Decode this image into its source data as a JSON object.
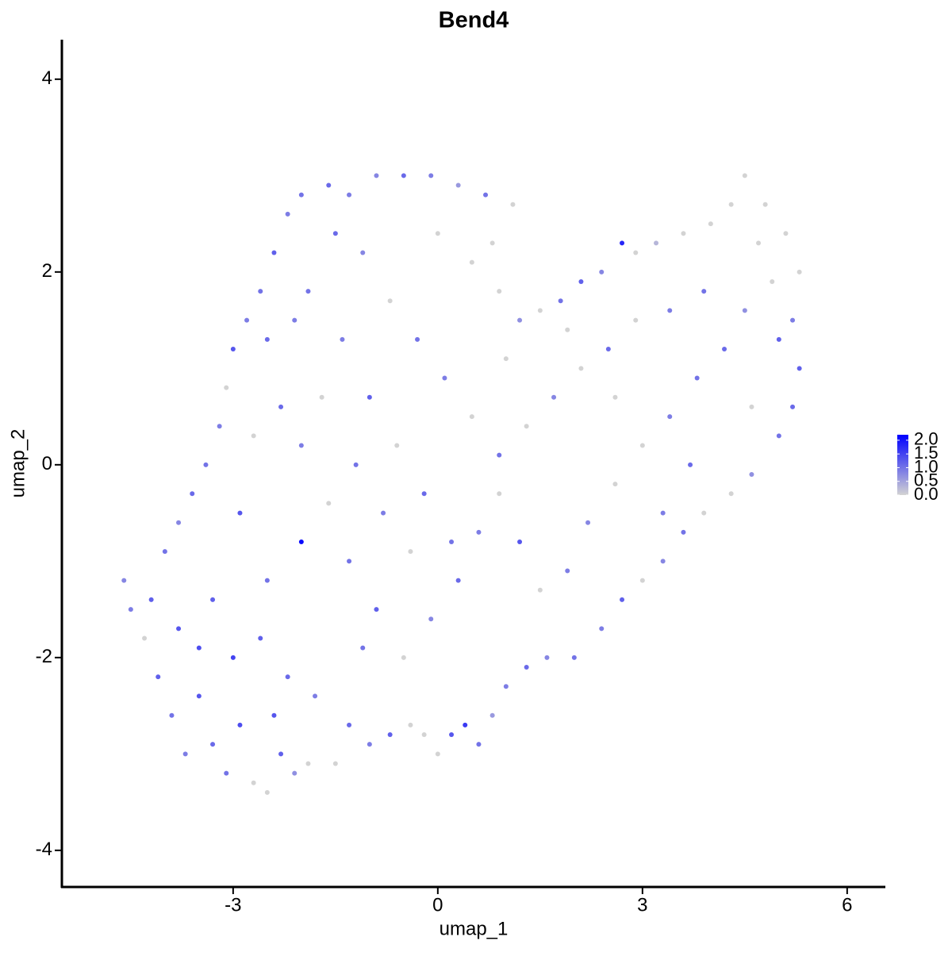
{
  "chart_data": {
    "type": "scatter",
    "title": "Bend4",
    "xlabel": "umap_1",
    "ylabel": "umap_2",
    "xlim": [
      -5.51,
      6.56
    ],
    "ylim": [
      -4.38,
      4.41
    ],
    "xticks": [
      -3,
      0,
      3,
      6
    ],
    "yticks": [
      -4,
      -2,
      0,
      2,
      4
    ],
    "x": [
      -4.6,
      -4.5,
      -4.3,
      -4.1,
      -3.9,
      -3.7,
      -3.5,
      -3.3,
      -3.1,
      -2.9,
      -2.7,
      -2.5,
      -2.3,
      -2.1,
      -1.9,
      -1.5,
      -1.3,
      -1.0,
      -0.7,
      -0.4,
      -0.2,
      0.0,
      0.2,
      0.4,
      0.6,
      0.8,
      1.0,
      1.3,
      1.6,
      2.0,
      2.4,
      2.7,
      3.0,
      3.3,
      3.6,
      3.9,
      4.3,
      4.6,
      5.0,
      5.2,
      5.3,
      5.2,
      5.3,
      5.1,
      4.8,
      4.5,
      4.3,
      4.0,
      3.6,
      3.2,
      2.9,
      2.7,
      2.4,
      2.1,
      1.8,
      1.5,
      1.2,
      0.9,
      0.8,
      1.1,
      0.7,
      0.3,
      -0.1,
      -0.5,
      -0.9,
      -1.3,
      -1.6,
      -2.0,
      -2.2,
      -2.4,
      -2.6,
      -2.8,
      -3.0,
      -3.1,
      -3.2,
      -3.4,
      -3.6,
      -3.8,
      -4.0,
      -4.2,
      -3.8,
      -3.5,
      -3.0,
      -2.6,
      -2.2,
      -1.8,
      -2.0,
      -2.5,
      -2.9,
      -2.7,
      -2.3,
      -2.0,
      -1.6,
      -1.3,
      -0.9,
      -0.5,
      -0.1,
      0.3,
      0.6,
      0.9,
      1.2,
      1.5,
      1.9,
      2.2,
      2.6,
      3.0,
      3.4,
      3.8,
      4.2,
      4.5,
      4.9,
      4.7,
      3.9,
      3.4,
      2.9,
      2.5,
      2.1,
      1.7,
      1.3,
      0.9,
      0.5,
      0.1,
      -0.3,
      -0.7,
      -1.1,
      -1.5,
      -1.9,
      -1.4,
      -1.0,
      -0.6,
      -0.2,
      0.2,
      -0.4,
      -0.8,
      -1.2,
      -1.7,
      -2.5,
      -2.1,
      0.0,
      0.5,
      1.0,
      1.9,
      2.6,
      3.3,
      3.7,
      4.6,
      5.0,
      -3.3,
      -2.4,
      -1.1
    ],
    "y": [
      -1.2,
      -1.5,
      -1.8,
      -2.2,
      -2.6,
      -3.0,
      -2.4,
      -2.9,
      -3.2,
      -2.7,
      -3.3,
      -3.4,
      -3.0,
      -3.2,
      -3.1,
      -3.1,
      -2.7,
      -2.9,
      -2.8,
      -2.7,
      -2.8,
      -3.0,
      -2.8,
      -2.7,
      -2.9,
      -2.6,
      -2.3,
      -2.1,
      -2.0,
      -2.0,
      -1.7,
      -1.4,
      -1.2,
      -1.0,
      -0.7,
      -0.5,
      -0.3,
      -0.1,
      0.3,
      0.6,
      1.0,
      1.5,
      2.0,
      2.4,
      2.7,
      3.0,
      2.7,
      2.5,
      2.4,
      2.3,
      2.2,
      2.3,
      2.0,
      1.9,
      1.7,
      1.6,
      1.5,
      1.8,
      2.3,
      2.7,
      2.8,
      2.9,
      3.0,
      3.0,
      3.0,
      2.8,
      2.9,
      2.8,
      2.6,
      2.2,
      1.8,
      1.5,
      1.2,
      0.8,
      0.4,
      0.0,
      -0.3,
      -0.6,
      -0.9,
      -1.4,
      -1.7,
      -1.9,
      -2.0,
      -1.8,
      -2.2,
      -2.4,
      -0.8,
      -1.2,
      -0.5,
      0.3,
      0.6,
      0.2,
      -0.4,
      -1.0,
      -1.5,
      -2.0,
      -1.6,
      -1.2,
      -0.7,
      -0.3,
      -0.8,
      -1.3,
      -1.1,
      -0.6,
      -0.2,
      0.2,
      0.5,
      0.9,
      1.2,
      1.6,
      1.9,
      2.3,
      1.8,
      1.6,
      1.5,
      1.2,
      1.0,
      0.7,
      0.4,
      0.1,
      0.5,
      0.9,
      1.3,
      1.7,
      2.2,
      2.4,
      1.8,
      1.3,
      0.7,
      0.2,
      -0.3,
      -0.8,
      -0.9,
      -0.5,
      0.0,
      0.7,
      1.3,
      1.5,
      2.4,
      2.1,
      1.1,
      1.4,
      0.7,
      -0.5,
      0.0,
      0.6,
      1.3,
      -1.4,
      -2.6,
      -1.9
    ],
    "values": [
      0.8,
      0.9,
      0,
      1.2,
      1.0,
      0.9,
      1.3,
      1.1,
      1.0,
      1.4,
      0,
      0,
      1.2,
      0.7,
      0,
      0,
      1.1,
      0.9,
      1.2,
      0,
      0,
      0,
      1.3,
      1.6,
      1.0,
      0.6,
      0.9,
      1.1,
      0.8,
      1.0,
      0.9,
      1.2,
      0,
      0.8,
      1.0,
      0,
      0,
      0.7,
      1.0,
      1.1,
      1.2,
      0.9,
      0,
      0,
      0,
      0,
      0,
      0,
      0,
      0.3,
      0,
      1.8,
      0.8,
      1.2,
      1.0,
      0,
      0.7,
      0,
      0,
      0,
      1.0,
      0.6,
      0.9,
      1.1,
      0.8,
      0.9,
      1.1,
      1.0,
      0.9,
      1.2,
      1.0,
      0.9,
      1.3,
      0,
      0.9,
      1.0,
      1.1,
      0.8,
      1.0,
      1.2,
      1.3,
      1.4,
      1.5,
      1.2,
      1.1,
      0.9,
      2.1,
      1.0,
      1.3,
      0,
      1.1,
      0.9,
      0,
      1.0,
      1.2,
      0,
      0.8,
      1.1,
      0.9,
      0,
      1.3,
      0,
      0.9,
      0.8,
      0,
      0,
      0.9,
      1.0,
      1.1,
      0.7,
      0,
      0,
      1.0,
      0.9,
      0,
      1.1,
      0,
      0.8,
      0,
      1.0,
      0,
      0.9,
      1.0,
      0,
      0.8,
      1.1,
      1.0,
      0.9,
      1.2,
      0,
      1.1,
      1.0,
      0,
      0.9,
      1.0,
      0,
      1.1,
      0.9,
      0,
      0,
      0,
      0,
      0,
      0.9,
      1.1,
      0,
      1.2,
      1.2,
      1.3,
      1.0
    ],
    "colorbar": {
      "low_color": "#d3d3d3",
      "high_color": "#0000ff",
      "lim": [
        0,
        2.2
      ],
      "ticks": [
        {
          "value": 0,
          "label": "0.0"
        },
        {
          "value": 0.5,
          "label": "0.5"
        },
        {
          "value": 1,
          "label": "1.0"
        },
        {
          "value": 1.5,
          "label": "1.5"
        },
        {
          "value": 2,
          "label": "2.0"
        }
      ]
    }
  }
}
